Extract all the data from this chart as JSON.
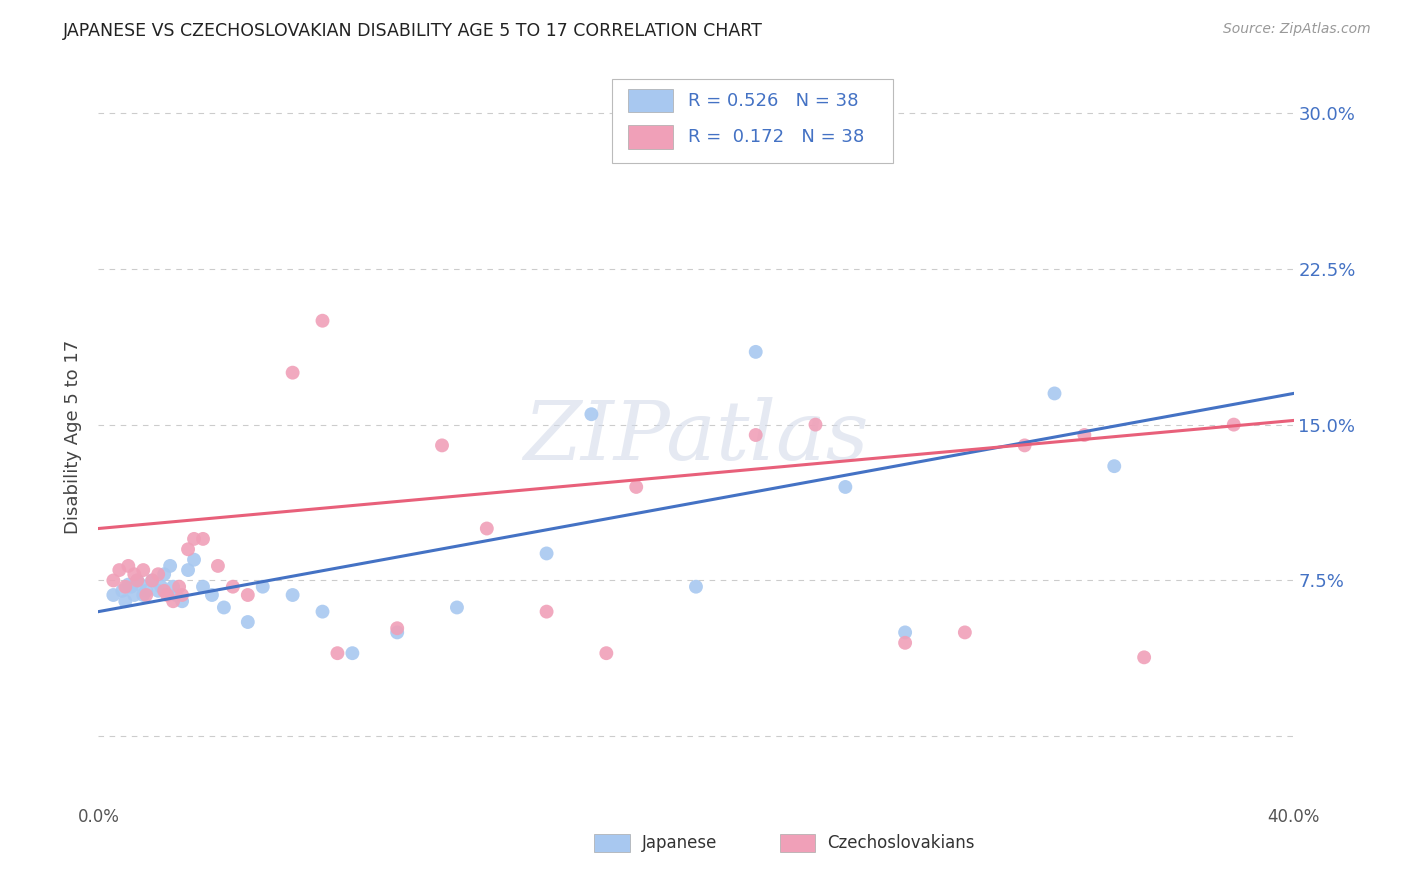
{
  "title": "JAPANESE VS CZECHOSLOVAKIAN DISABILITY AGE 5 TO 17 CORRELATION CHART",
  "source": "Source: ZipAtlas.com",
  "ylabel": "Disability Age 5 to 17",
  "xlim": [
    0.0,
    0.4
  ],
  "ylim": [
    -0.032,
    0.32
  ],
  "yticks": [
    0.0,
    0.075,
    0.15,
    0.225,
    0.3
  ],
  "ytick_labels": [
    "",
    "7.5%",
    "15.0%",
    "22.5%",
    "30.0%"
  ],
  "xticks": [
    0.0,
    0.1,
    0.2,
    0.3,
    0.4
  ],
  "xtick_labels": [
    "0.0%",
    "",
    "",
    "",
    "40.0%"
  ],
  "grid_color": "#cccccc",
  "background_color": "#ffffff",
  "japanese_color": "#a8c8f0",
  "czechoslovakian_color": "#f0a0b8",
  "japanese_line_color": "#4472C4",
  "czechoslovakian_line_color": "#E8607A",
  "text_color_blue": "#4472C4",
  "legend_R_blue": "0.526",
  "legend_N_blue": "38",
  "legend_R_pink": "0.172",
  "legend_N_pink": "38",
  "japanese_x": [
    0.005,
    0.008,
    0.009,
    0.01,
    0.011,
    0.012,
    0.013,
    0.014,
    0.015,
    0.016,
    0.018,
    0.02,
    0.021,
    0.022,
    0.024,
    0.025,
    0.026,
    0.028,
    0.03,
    0.032,
    0.035,
    0.038,
    0.042,
    0.05,
    0.055,
    0.065,
    0.075,
    0.085,
    0.1,
    0.12,
    0.15,
    0.165,
    0.2,
    0.22,
    0.25,
    0.27,
    0.32,
    0.34
  ],
  "japanese_y": [
    0.068,
    0.07,
    0.065,
    0.073,
    0.072,
    0.068,
    0.075,
    0.073,
    0.068,
    0.07,
    0.075,
    0.07,
    0.072,
    0.078,
    0.082,
    0.072,
    0.068,
    0.065,
    0.08,
    0.085,
    0.072,
    0.068,
    0.062,
    0.055,
    0.072,
    0.068,
    0.06,
    0.04,
    0.05,
    0.062,
    0.088,
    0.155,
    0.072,
    0.185,
    0.12,
    0.05,
    0.165,
    0.13
  ],
  "czechoslovakian_x": [
    0.005,
    0.007,
    0.009,
    0.01,
    0.012,
    0.013,
    0.015,
    0.016,
    0.018,
    0.02,
    0.022,
    0.023,
    0.025,
    0.027,
    0.028,
    0.03,
    0.032,
    0.035,
    0.04,
    0.045,
    0.05,
    0.065,
    0.075,
    0.08,
    0.1,
    0.115,
    0.13,
    0.15,
    0.17,
    0.18,
    0.22,
    0.24,
    0.27,
    0.29,
    0.31,
    0.33,
    0.35,
    0.38
  ],
  "czechoslovakian_y": [
    0.075,
    0.08,
    0.072,
    0.082,
    0.078,
    0.075,
    0.08,
    0.068,
    0.075,
    0.078,
    0.07,
    0.068,
    0.065,
    0.072,
    0.068,
    0.09,
    0.095,
    0.095,
    0.082,
    0.072,
    0.068,
    0.175,
    0.2,
    0.04,
    0.052,
    0.14,
    0.1,
    0.06,
    0.04,
    0.12,
    0.145,
    0.15,
    0.045,
    0.05,
    0.14,
    0.145,
    0.038,
    0.15
  ],
  "watermark_text": "ZIPatlas",
  "marker_size": 100,
  "line_width": 2.2,
  "blue_line_x0": 0.0,
  "blue_line_y0": 0.06,
  "blue_line_x1": 0.4,
  "blue_line_y1": 0.165,
  "pink_line_x0": 0.0,
  "pink_line_y0": 0.1,
  "pink_line_x1": 0.4,
  "pink_line_y1": 0.152
}
